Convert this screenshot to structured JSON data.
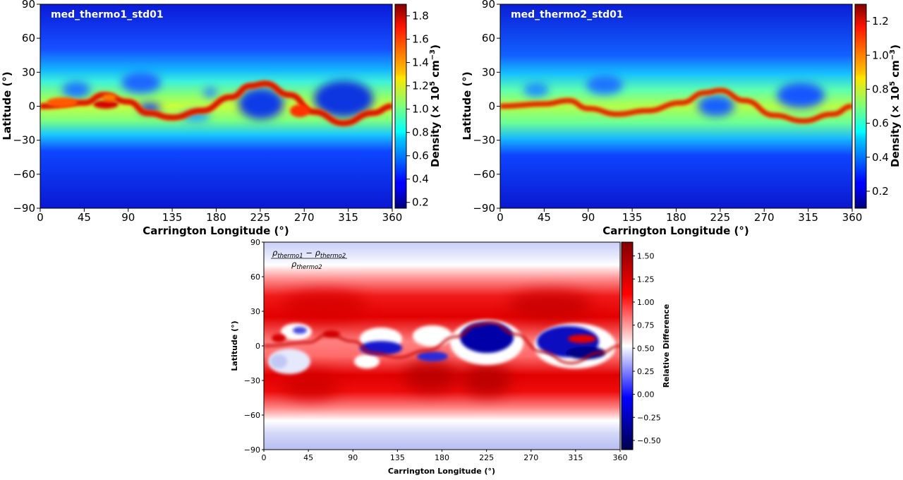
{
  "chart_data": [
    {
      "id": "thermo1",
      "type": "heatmap",
      "title": "med_thermo1_std01",
      "xlabel": "Carrington Longitude (°)",
      "ylabel": "Latitude (°)",
      "xlim": [
        0,
        360
      ],
      "ylim": [
        -90,
        90
      ],
      "xticks": [
        "0",
        "45",
        "90",
        "135",
        "180",
        "225",
        "270",
        "315",
        "360"
      ],
      "yticks": [
        "90",
        "60",
        "30",
        "0",
        "−30",
        "−60",
        "−90"
      ],
      "colorbar": {
        "label": "Density (× 10",
        "label_exp": "5",
        "label_unit": " cm",
        "label_unit_exp": "−3",
        "label_close": ")",
        "range": [
          0.15,
          1.9
        ],
        "ticks": [
          "1.8",
          "1.6",
          "1.4",
          "1.2",
          "1.0",
          "0.8",
          "0.6",
          "0.4",
          "0.2"
        ],
        "tick_values": [
          1.8,
          1.6,
          1.4,
          1.2,
          1.0,
          0.8,
          0.6,
          0.4,
          0.2
        ],
        "colormap": "jet"
      },
      "wave": [
        [
          0,
          0
        ],
        [
          45,
          3
        ],
        [
          65,
          10
        ],
        [
          90,
          4
        ],
        [
          110,
          -6
        ],
        [
          135,
          -10
        ],
        [
          165,
          -4
        ],
        [
          195,
          8
        ],
        [
          215,
          18
        ],
        [
          230,
          20
        ],
        [
          255,
          10
        ],
        [
          280,
          -5
        ],
        [
          310,
          -15
        ],
        [
          340,
          -6
        ],
        [
          360,
          0
        ]
      ]
    },
    {
      "id": "thermo2",
      "type": "heatmap",
      "title": "med_thermo2_std01",
      "xlabel": "Carrington Longitude (°)",
      "ylabel": "Latitude (°)",
      "xlim": [
        0,
        360
      ],
      "ylim": [
        -90,
        90
      ],
      "xticks": [
        "0",
        "45",
        "90",
        "135",
        "180",
        "225",
        "270",
        "315",
        "360"
      ],
      "yticks": [
        "90",
        "60",
        "30",
        "0",
        "−30",
        "−60",
        "−90"
      ],
      "colorbar": {
        "label": "Density (× 10",
        "label_exp": "5",
        "label_unit": " cm",
        "label_unit_exp": "−3",
        "label_close": ")",
        "range": [
          0.1,
          1.3
        ],
        "ticks": [
          "1.2",
          "1.0",
          "0.8",
          "0.6",
          "0.4",
          "0.2"
        ],
        "tick_values": [
          1.2,
          1.0,
          0.8,
          0.6,
          0.4,
          0.2
        ],
        "colormap": "jet"
      },
      "wave": [
        [
          0,
          0
        ],
        [
          45,
          2
        ],
        [
          70,
          5
        ],
        [
          90,
          -2
        ],
        [
          120,
          -7
        ],
        [
          150,
          -4
        ],
        [
          185,
          3
        ],
        [
          210,
          12
        ],
        [
          225,
          14
        ],
        [
          250,
          5
        ],
        [
          280,
          -8
        ],
        [
          310,
          -13
        ],
        [
          340,
          -7
        ],
        [
          360,
          0
        ]
      ]
    },
    {
      "id": "reldiff",
      "type": "heatmap",
      "formula": {
        "num_a": "ρ",
        "num_a_sub": "thermo1",
        "minus": " − ",
        "num_b": "ρ",
        "num_b_sub": "thermo2",
        "den": "ρ",
        "den_sub": "thermo2"
      },
      "xlabel": "Carrington Longitude (°)",
      "ylabel": "Latitude (°)",
      "xlim": [
        0,
        360
      ],
      "ylim": [
        -90,
        90
      ],
      "xticks": [
        "0",
        "45",
        "90",
        "135",
        "180",
        "225",
        "270",
        "315",
        "360"
      ],
      "yticks": [
        "90",
        "60",
        "30",
        "0",
        "−30",
        "−60",
        "−90"
      ],
      "colorbar": {
        "label": "Relative Difference",
        "range": [
          -0.6,
          1.65
        ],
        "ticks": [
          "1.50",
          "1.25",
          "1.00",
          "0.75",
          "0.50",
          "0.25",
          "0.00",
          "−0.25",
          "−0.50"
        ],
        "tick_values": [
          1.5,
          1.25,
          1.0,
          0.75,
          0.5,
          0.25,
          0.0,
          -0.25,
          -0.5
        ],
        "colormap": "seismic"
      }
    }
  ]
}
